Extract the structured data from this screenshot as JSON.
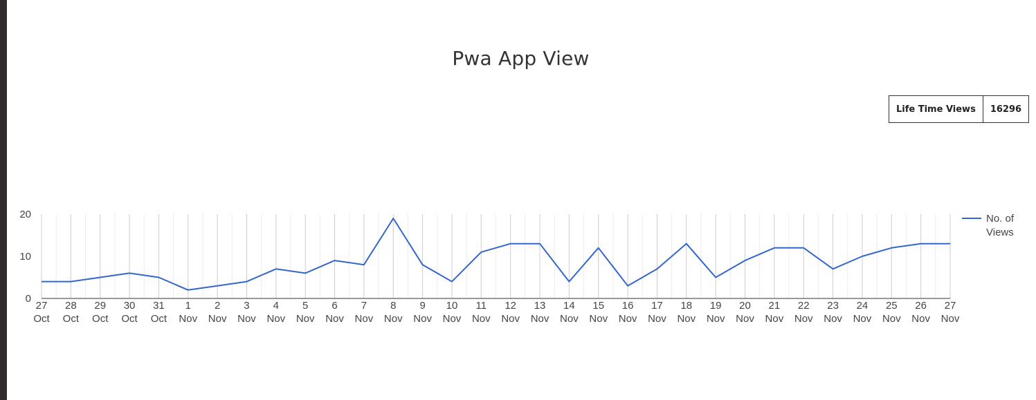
{
  "page": {
    "title": "Pwa App View"
  },
  "stats": {
    "lifetime_label": "Life Time Views",
    "lifetime_value": "16296"
  },
  "colors": {
    "series": "#3366cc",
    "grid_major": "#cccccc",
    "grid_minor": "#ebebeb",
    "axis": "#333333",
    "text": "#444444"
  },
  "chart_data": {
    "type": "line",
    "title": "",
    "xlabel": "",
    "ylabel": "",
    "ylim": [
      0,
      20
    ],
    "yticks": [
      0,
      10,
      20
    ],
    "grid": true,
    "legend_position": "right",
    "categories": [
      [
        "27",
        "Oct"
      ],
      [
        "28",
        "Oct"
      ],
      [
        "29",
        "Oct"
      ],
      [
        "30",
        "Oct"
      ],
      [
        "31",
        "Oct"
      ],
      [
        "1",
        "Nov"
      ],
      [
        "2",
        "Nov"
      ],
      [
        "3",
        "Nov"
      ],
      [
        "4",
        "Nov"
      ],
      [
        "5",
        "Nov"
      ],
      [
        "6",
        "Nov"
      ],
      [
        "7",
        "Nov"
      ],
      [
        "8",
        "Nov"
      ],
      [
        "9",
        "Nov"
      ],
      [
        "10",
        "Nov"
      ],
      [
        "11",
        "Nov"
      ],
      [
        "12",
        "Nov"
      ],
      [
        "13",
        "Nov"
      ],
      [
        "14",
        "Nov"
      ],
      [
        "15",
        "Nov"
      ],
      [
        "16",
        "Nov"
      ],
      [
        "17",
        "Nov"
      ],
      [
        "18",
        "Nov"
      ],
      [
        "19",
        "Nov"
      ],
      [
        "20",
        "Nov"
      ],
      [
        "21",
        "Nov"
      ],
      [
        "22",
        "Nov"
      ],
      [
        "23",
        "Nov"
      ],
      [
        "24",
        "Nov"
      ],
      [
        "25",
        "Nov"
      ],
      [
        "26",
        "Nov"
      ],
      [
        "27",
        "Nov"
      ]
    ],
    "series": [
      {
        "name": "No. of Views",
        "legend_lines": [
          "No. of",
          "Views"
        ],
        "values": [
          4,
          4,
          5,
          6,
          5,
          2,
          3,
          4,
          7,
          6,
          9,
          8,
          19,
          8,
          4,
          11,
          13,
          13,
          4,
          12,
          3,
          7,
          13,
          5,
          9,
          12,
          12,
          7,
          10,
          12,
          13,
          13
        ]
      }
    ]
  }
}
